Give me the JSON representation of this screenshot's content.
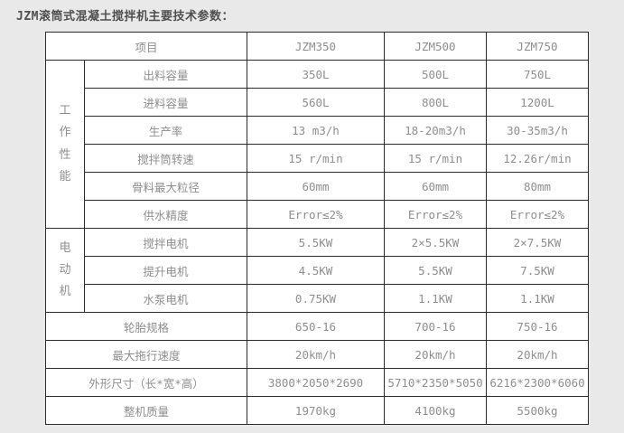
{
  "page": {
    "title": "JZM滚筒式混凝土搅拌机主要技术参数："
  },
  "colors": {
    "page_bg": "#e9e9e9",
    "table_bg": "#ffffff",
    "border": "#2b2b2b",
    "cell_text": "#8e8e8e",
    "title_text": "#4f4f4f"
  },
  "table": {
    "header": {
      "item_label": "项目",
      "models": [
        "JZM350",
        "JZM500",
        "JZM750"
      ]
    },
    "sections": [
      {
        "group_label": "工作性能",
        "rows": [
          {
            "label": "出料容量",
            "values": [
              "350L",
              "500L",
              "750L"
            ]
          },
          {
            "label": "进料容量",
            "values": [
              "560L",
              "800L",
              "1200L"
            ]
          },
          {
            "label": "生产率",
            "values": [
              "13 m3/h",
              "18-20m3/h",
              "30-35m3/h"
            ]
          },
          {
            "label": "搅拌筒转速",
            "values": [
              "15 r/min",
              "15 r/min",
              "12.26r/min"
            ]
          },
          {
            "label": "骨料最大粒径",
            "values": [
              "60mm",
              "60mm",
              "80mm"
            ]
          },
          {
            "label": "供水精度",
            "values": [
              "Error≤2%",
              "Error≤2%",
              "Error≤2%"
            ]
          }
        ]
      },
      {
        "group_label": "电动机",
        "rows": [
          {
            "label": "搅拌电机",
            "values": [
              "5.5KW",
              "2×5.5KW",
              "2×7.5KW"
            ]
          },
          {
            "label": "提升电机",
            "values": [
              "4.5KW",
              "5.5KW",
              "7.5KW"
            ]
          },
          {
            "label": "水泵电机",
            "values": [
              "0.75KW",
              "1.1KW",
              "1.1KW"
            ]
          }
        ]
      },
      {
        "group_label": "",
        "rows": [
          {
            "label": "轮胎规格",
            "values": [
              "650-16",
              "700-16",
              "750-16"
            ]
          },
          {
            "label": "最大拖行速度",
            "values": [
              "20km/h",
              "20km/h",
              "20km/h"
            ]
          },
          {
            "label": "外形尺寸（长*宽*高）",
            "values": [
              "3800*2050*2690",
              "5710*2350*5050",
              "6216*2300*6060"
            ]
          },
          {
            "label": "整机质量",
            "values": [
              "1970kg",
              "4100kg",
              "5500kg"
            ]
          }
        ]
      }
    ]
  }
}
